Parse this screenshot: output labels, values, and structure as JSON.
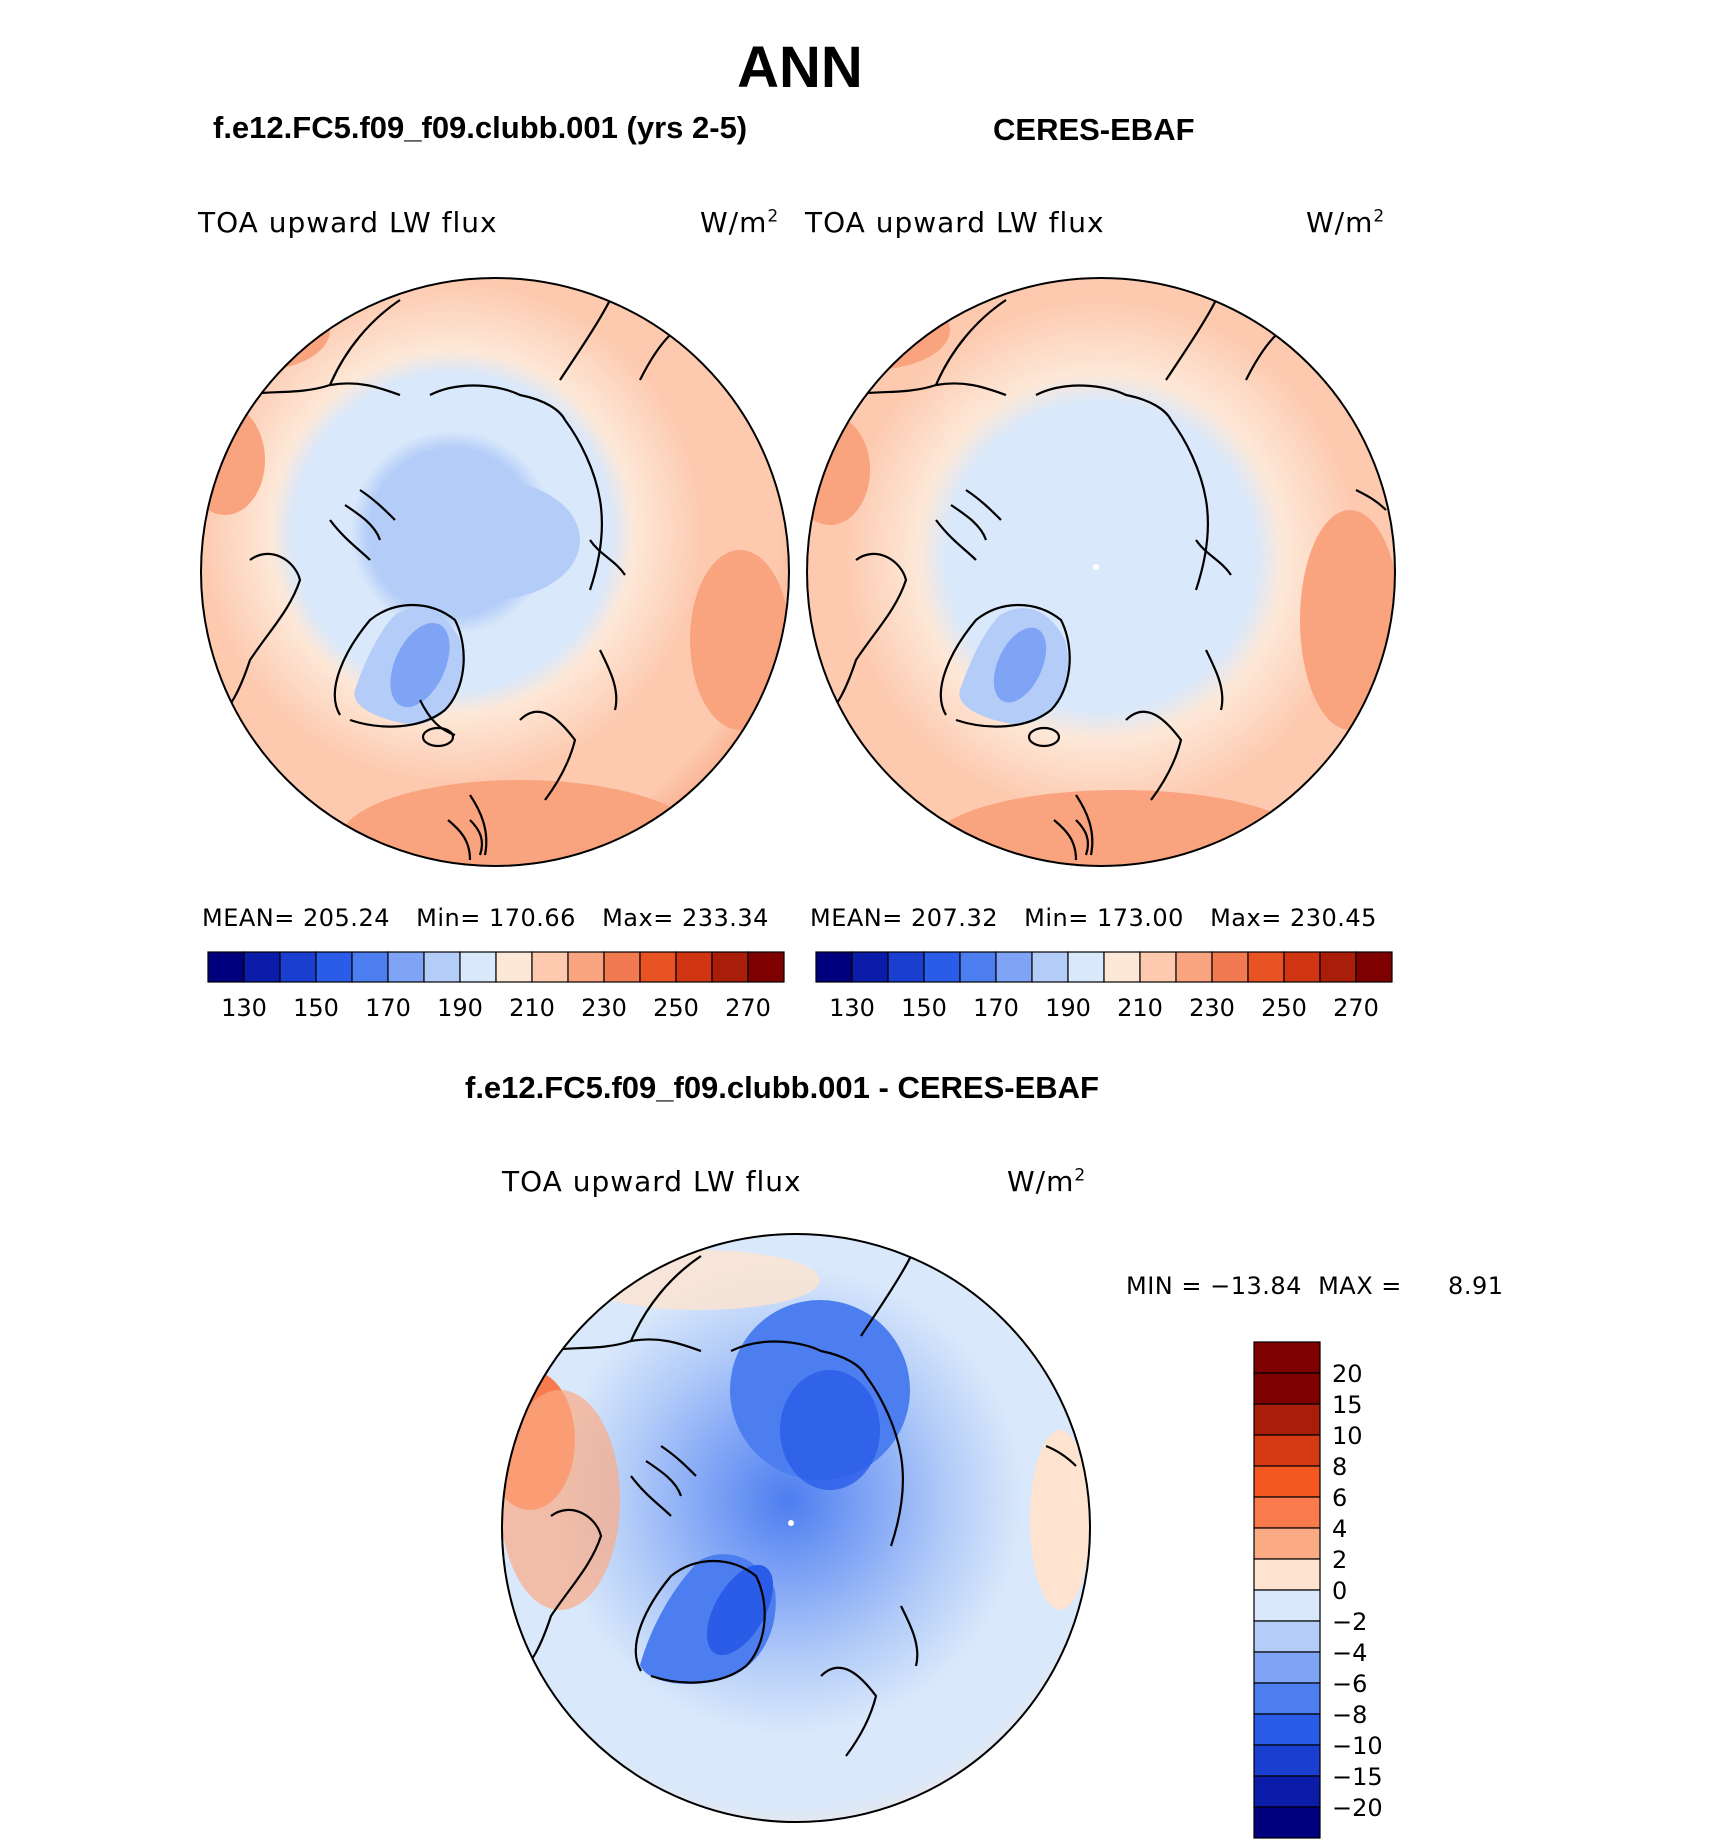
{
  "page_title": "ANN",
  "panel_left": {
    "case": "f.e12.FC5.f09_f09.clubb.001 (yrs 2-5)",
    "variable": "TOA upward LW flux",
    "units": "W/m",
    "units_sup": "2",
    "mean_label": "MEAN=",
    "mean": "205.24",
    "min_label": "Min=",
    "min": "170.66",
    "max_label": "Max=",
    "max": "233.34"
  },
  "panel_right": {
    "case": "CERES-EBAF",
    "variable": "TOA upward LW flux",
    "units": "W/m",
    "units_sup": "2",
    "mean_label": "MEAN=",
    "mean": "207.32",
    "min_label": "Min=",
    "min": "173.00",
    "max_label": "Max=",
    "max": "230.45"
  },
  "panel_diff": {
    "case": "f.e12.FC5.f09_f09.clubb.001 - CERES-EBAF",
    "variable": "TOA upward LW flux",
    "units": "W/m",
    "units_sup": "2",
    "min_label": "MIN =",
    "min": "−13.84",
    "max_label": "MAX =",
    "max": "8.91"
  },
  "colors": {
    "scale_abs": [
      "#00007f",
      "#0a1ca8",
      "#1a3fd0",
      "#2a5ce8",
      "#4d7ef0",
      "#7fa4f5",
      "#b3ccf8",
      "#d9e8fb",
      "#fde8d8",
      "#fdcab0",
      "#f9a37f",
      "#f27a50",
      "#e85324",
      "#cf3512",
      "#a81e08",
      "#7f0000"
    ],
    "scale_diff": [
      "#7f0000",
      "#a81e08",
      "#d63a12",
      "#f4571f",
      "#f97a4d",
      "#fbab84",
      "#fde3d0",
      "#d9e8fb",
      "#b3ccf8",
      "#7fa4f5",
      "#4d7ef0",
      "#2a5ce8",
      "#1a3fd0",
      "#0a1ca8",
      "#00007f"
    ]
  },
  "chart_data": [
    {
      "type": "heatmap",
      "title": "f.e12.FC5.f09_f09.clubb.001 (yrs 2-5)",
      "projection": "north polar stereographic",
      "variable": "TOA upward LW flux",
      "units": "W/m^2",
      "mean": 205.24,
      "min": 170.66,
      "max": 233.34,
      "colorbar_ticks": [
        130,
        150,
        170,
        190,
        210,
        230,
        250,
        270
      ]
    },
    {
      "type": "heatmap",
      "title": "CERES-EBAF",
      "projection": "north polar stereographic",
      "variable": "TOA upward LW flux",
      "units": "W/m^2",
      "mean": 207.32,
      "min": 173.0,
      "max": 230.45,
      "colorbar_ticks": [
        130,
        150,
        170,
        190,
        210,
        230,
        250,
        270
      ]
    },
    {
      "type": "heatmap",
      "title": "f.e12.FC5.f09_f09.clubb.001 - CERES-EBAF",
      "projection": "north polar stereographic",
      "variable": "TOA upward LW flux",
      "units": "W/m^2",
      "min": -13.84,
      "max": 8.91,
      "colorbar_ticks": [
        20,
        15,
        10,
        8,
        6,
        4,
        2,
        0,
        -2,
        -4,
        -6,
        -8,
        -10,
        -15,
        -20
      ],
      "colorbar_tick_labels": [
        "20",
        "15",
        "10",
        "8",
        "6",
        "4",
        "2",
        "0",
        "−2",
        "−4",
        "−6",
        "−8",
        "−10",
        "−15",
        "−20"
      ]
    }
  ]
}
